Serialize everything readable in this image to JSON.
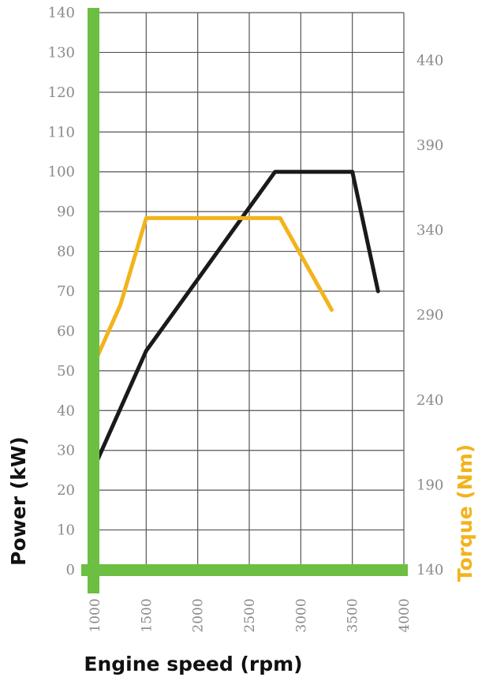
{
  "chart_data": {
    "type": "line",
    "xlabel": "Engine speed (rpm)",
    "ylabel": "Power (kW)",
    "y2label": "Torque (Nm)",
    "xlim": [
      1000,
      4000
    ],
    "ylim": [
      0,
      140
    ],
    "y2lim": [
      140,
      468
    ],
    "x_ticks": [
      "1000",
      "1500",
      "2000",
      "2500",
      "3000",
      "3500",
      "4000"
    ],
    "y_ticks": [
      "0",
      "10",
      "20",
      "30",
      "40",
      "50",
      "60",
      "70",
      "80",
      "90",
      "100",
      "110",
      "120",
      "130",
      "140"
    ],
    "y2_ticks": [
      "140",
      "190",
      "240",
      "290",
      "340",
      "390",
      "440"
    ],
    "grid": true,
    "series": [
      {
        "name": "Power (kW)",
        "axis": "left",
        "color": "#1a1a1a",
        "x": [
          1000,
          1500,
          2000,
          2500,
          2750,
          3500,
          3750
        ],
        "y": [
          26,
          55,
          73,
          91,
          100,
          100,
          70
        ]
      },
      {
        "name": "Torque (Nm)",
        "axis": "right",
        "color": "#f2b31c",
        "x": [
          1000,
          1250,
          1500,
          2800,
          3300
        ],
        "y": [
          262,
          296,
          347,
          347,
          293
        ]
      }
    ],
    "colors": {
      "axis_bar": "#6cbf42",
      "grid": "#555555",
      "torque": "#f2b31c",
      "power": "#1a1a1a"
    }
  }
}
